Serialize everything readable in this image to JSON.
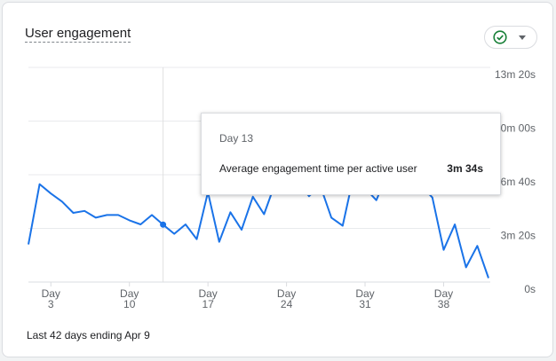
{
  "card": {
    "title": "User engagement",
    "footer": "Last 42 days ending Apr 9",
    "status_icon": "check-circle-icon",
    "status_color": "#188038"
  },
  "tooltip": {
    "day": "Day 13",
    "metric_label": "Average engagement time per active user",
    "value": "3m 34s"
  },
  "chart_data": {
    "type": "line",
    "x": [
      1,
      2,
      3,
      4,
      5,
      6,
      7,
      8,
      9,
      10,
      11,
      12,
      13,
      14,
      15,
      16,
      17,
      18,
      19,
      20,
      21,
      22,
      23,
      24,
      25,
      26,
      27,
      28,
      29,
      30,
      31,
      32,
      33,
      34,
      35,
      36,
      37,
      38,
      39,
      40,
      41,
      42
    ],
    "series": [
      {
        "values": [
          140,
          365,
          330,
          300,
          258,
          265,
          240,
          250,
          250,
          230,
          215,
          250,
          214,
          180,
          215,
          160,
          335,
          150,
          260,
          195,
          318,
          253,
          370,
          375,
          375,
          320,
          360,
          240,
          210,
          400,
          350,
          305,
          405,
          560,
          400,
          360,
          315,
          120,
          215,
          55,
          135,
          15
        ],
        "color": "#1a73e8"
      }
    ],
    "y_ticks": [
      "0s",
      "3m 20s",
      "6m 40s",
      "10m 00s",
      "13m 20s"
    ],
    "ylim": [
      0,
      800
    ],
    "x_ticks": [
      {
        "x": 3,
        "line1": "Day",
        "line2": "3"
      },
      {
        "x": 10,
        "line1": "Day",
        "line2": "10"
      },
      {
        "x": 17,
        "line1": "Day",
        "line2": "17"
      },
      {
        "x": 24,
        "line1": "Day",
        "line2": "24"
      },
      {
        "x": 31,
        "line1": "Day",
        "line2": "31"
      },
      {
        "x": 38,
        "line1": "Day",
        "line2": "38"
      }
    ],
    "highlight_x": 13,
    "grid": true
  }
}
